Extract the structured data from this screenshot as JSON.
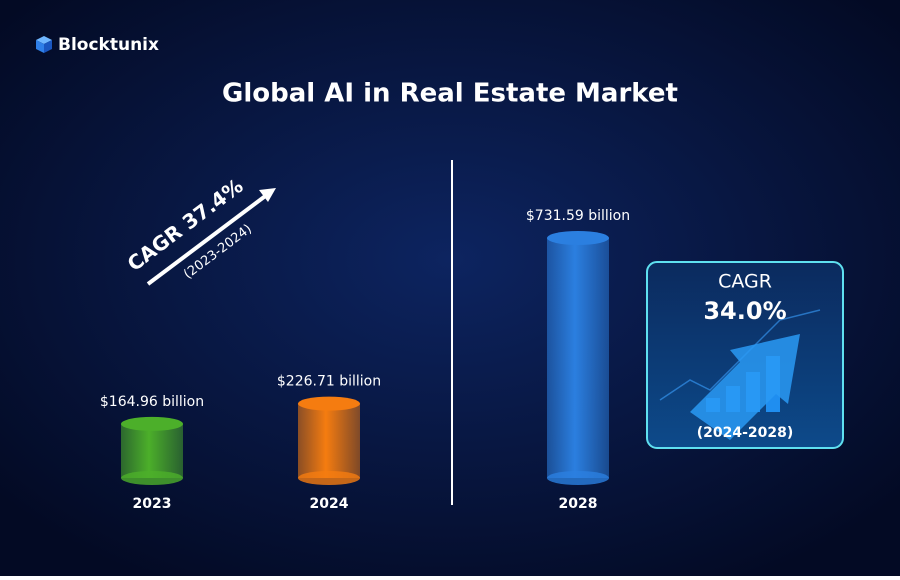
{
  "chart_data": {
    "type": "bar",
    "brand": "Blocktunix",
    "title": "Global AI in Real Estate Market",
    "categories": [
      "2023",
      "2024",
      "2028"
    ],
    "values": [
      164.96,
      226.71,
      731.59
    ],
    "value_labels": [
      "$164.96 billion",
      "$226.71 billion",
      "$731.59 billion"
    ],
    "colors": [
      "#4caf2a",
      "#f57c10",
      "#2b7fe0"
    ],
    "annotations": {
      "cagr_short": "CAGR 37.4%",
      "cagr_short_period": "(2023-2024)",
      "cagr_box_label": "CAGR",
      "cagr_box_value": "34.0%",
      "cagr_box_period": "(2024-2028)"
    }
  }
}
